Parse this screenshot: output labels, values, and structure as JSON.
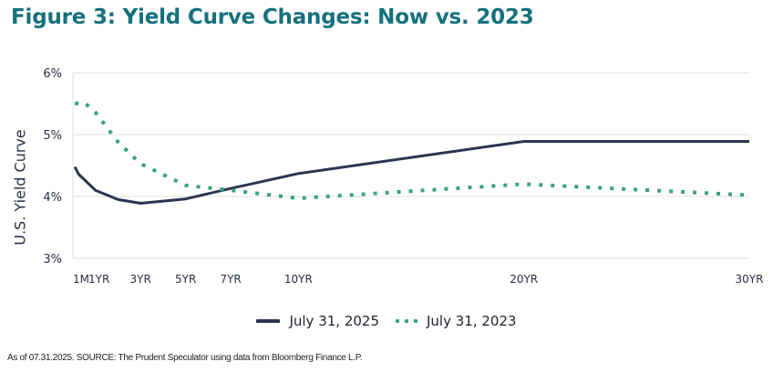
{
  "title": "Figure 3: Yield Curve Changes: Now vs. 2023",
  "source": "As of 07.31.2025. SOURCE: The Prudent Speculator using data from Bloomberg Finance L.P.",
  "colors": {
    "title": "#16707d",
    "series_2025": "#2c3550",
    "series_2023": "#3aa27a",
    "grid": "#e0e0e0"
  },
  "chart_data": {
    "type": "line",
    "title": "Figure 3: Yield Curve Changes: Now vs. 2023",
    "xlabel": "",
    "ylabel": "U.S. Yield Curve",
    "ylim": [
      3,
      6
    ],
    "yticks": [
      6,
      5,
      4,
      3
    ],
    "ytick_labels": [
      "6%",
      "5%",
      "4%",
      "3%"
    ],
    "xlim": [
      0,
      30
    ],
    "xticks": [
      0.083,
      1,
      3,
      5,
      7,
      10,
      20,
      30
    ],
    "xtick_labels": [
      "1M",
      "1YR",
      "3YR",
      "5YR",
      "7YR",
      "10YR",
      "20YR",
      "30YR"
    ],
    "legend_position": "bottom-center",
    "series": [
      {
        "name": "July 31, 2025",
        "style": "solid",
        "x": [
          0.083,
          0.25,
          1,
          2,
          3,
          5,
          7,
          10,
          20,
          30
        ],
        "values": [
          4.48,
          4.36,
          4.1,
          3.95,
          3.89,
          3.96,
          4.13,
          4.37,
          4.89,
          4.89
        ]
      },
      {
        "name": "July 31, 2023",
        "style": "dotted",
        "x": [
          0.083,
          0.5,
          1,
          2,
          3,
          5,
          7,
          10,
          20,
          30
        ],
        "values": [
          5.5,
          5.52,
          5.36,
          4.88,
          4.53,
          4.18,
          4.1,
          3.97,
          4.2,
          4.02
        ]
      }
    ]
  }
}
